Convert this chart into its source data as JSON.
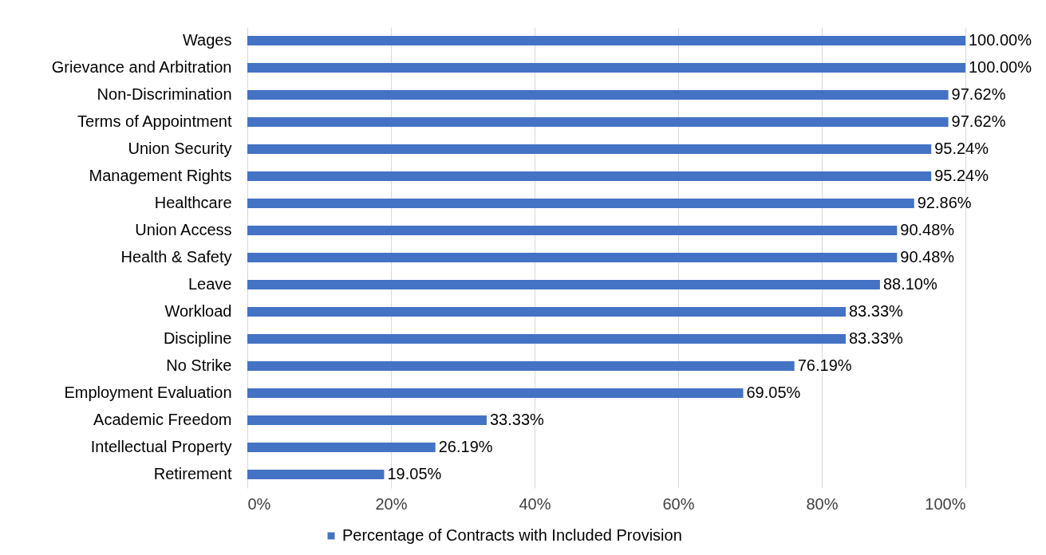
{
  "chart_data": {
    "type": "bar",
    "orientation": "horizontal",
    "categories": [
      "Wages",
      "Grievance and Arbitration",
      "Non-Discrimination",
      "Terms of Appointment",
      "Union Security",
      "Management Rights",
      "Healthcare",
      "Union Access",
      "Health & Safety",
      "Leave",
      "Workload",
      "Discipline",
      "No Strike",
      "Employment Evaluation",
      "Academic Freedom",
      "Intellectual Property",
      "Retirement"
    ],
    "series": [
      {
        "name": "Percentage of Contracts with Included Provision",
        "color": "#4472c4",
        "values": [
          100.0,
          100.0,
          97.62,
          97.62,
          95.24,
          95.24,
          92.86,
          90.48,
          90.48,
          88.1,
          83.33,
          83.33,
          76.19,
          69.05,
          33.33,
          26.19,
          19.05
        ],
        "value_labels": [
          "100.00%",
          "100.00%",
          "97.62%",
          "97.62%",
          "95.24%",
          "95.24%",
          "92.86%",
          "90.48%",
          "90.48%",
          "88.10%",
          "83.33%",
          "83.33%",
          "76.19%",
          "69.05%",
          "33.33%",
          "26.19%",
          "19.05%"
        ]
      }
    ],
    "xlim": [
      0,
      100
    ],
    "xticks": [
      {
        "value": 0,
        "label": "0%"
      },
      {
        "value": 20,
        "label": "20%"
      },
      {
        "value": 40,
        "label": "40%"
      },
      {
        "value": 60,
        "label": "60%"
      },
      {
        "value": 80,
        "label": "80%"
      },
      {
        "value": 100,
        "label": "100%"
      }
    ],
    "grid": "x",
    "legend": "bottom"
  }
}
